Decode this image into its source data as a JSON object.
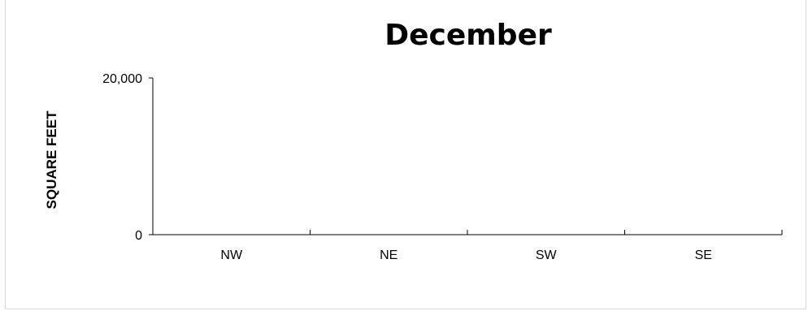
{
  "chart_data": {
    "type": "bar",
    "title": "December",
    "xlabel": "",
    "ylabel": "SQUARE FEET",
    "categories": [
      "NW",
      "NE",
      "SW",
      "SE"
    ],
    "series": [
      {
        "values": [
          0,
          0,
          0,
          0
        ]
      }
    ],
    "ylim": [
      0,
      20000
    ],
    "yticks": [
      0,
      20000
    ],
    "ytick_labels": [
      "0",
      "20,000"
    ],
    "grid": false,
    "legend": "none"
  }
}
